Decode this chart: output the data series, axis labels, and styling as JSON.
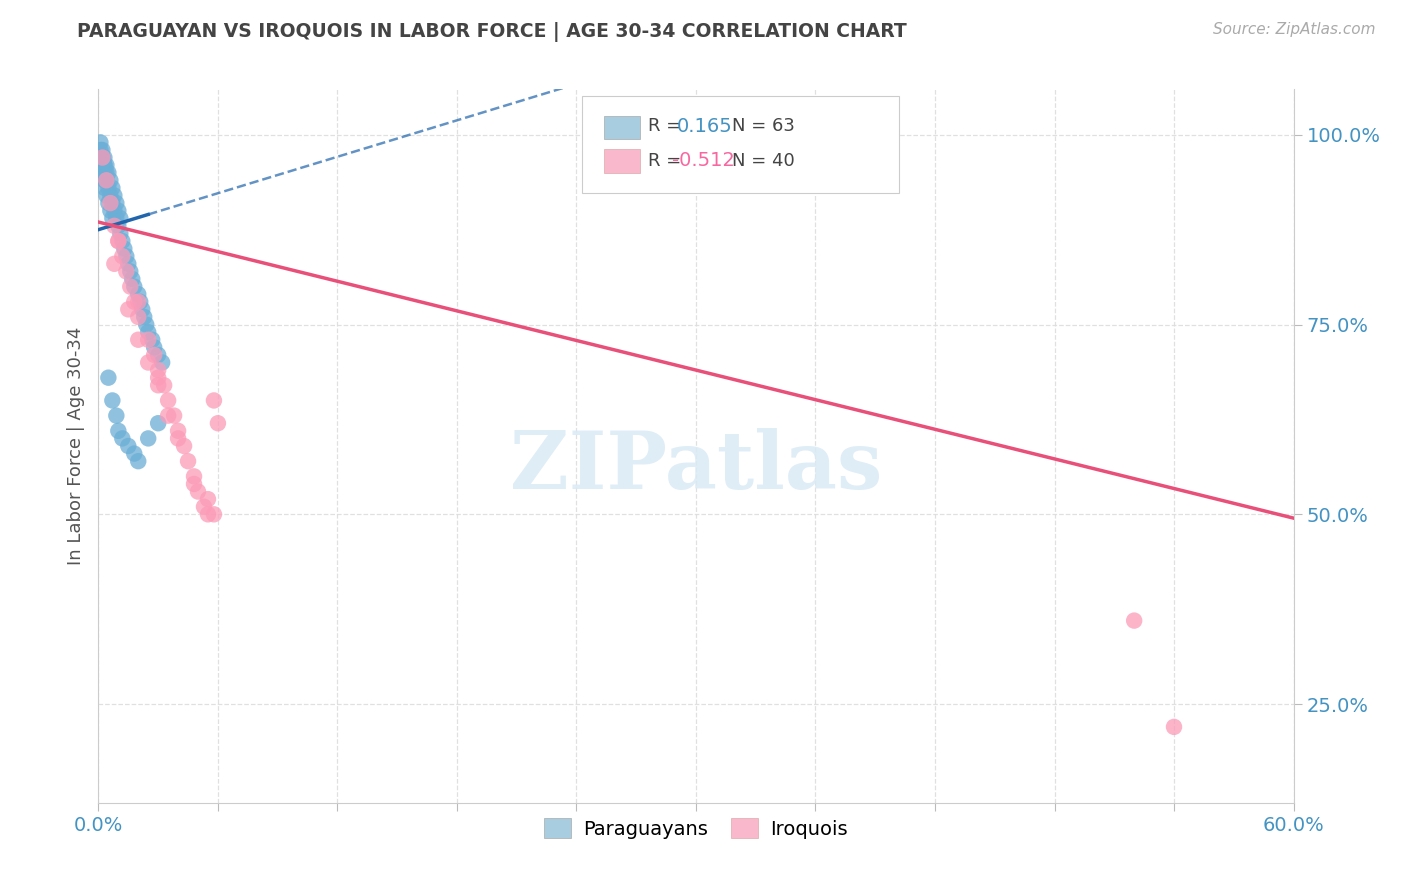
{
  "title": "PARAGUAYAN VS IROQUOIS IN LABOR FORCE | AGE 30-34 CORRELATION CHART",
  "source_text": "Source: ZipAtlas.com",
  "ylabel": "In Labor Force | Age 30-34",
  "xlim": [
    0.0,
    0.6
  ],
  "ylim": [
    0.12,
    1.06
  ],
  "r_paraguayan": 0.165,
  "n_paraguayan": 63,
  "r_iroquois": -0.512,
  "n_iroquois": 40,
  "blue_color": "#6baed6",
  "pink_color": "#fc9bb8",
  "blue_line_color": "#2166ac",
  "pink_line_color": "#e8507a",
  "axis_tick_color": "#4393c3",
  "grid_color": "#dddddd",
  "title_color": "#444444",
  "source_color": "#aaaaaa",
  "watermark_color": "#daeaf5",
  "paraguayan_x": [
    0.001,
    0.001,
    0.001,
    0.001,
    0.002,
    0.002,
    0.002,
    0.002,
    0.002,
    0.003,
    0.003,
    0.003,
    0.003,
    0.003,
    0.003,
    0.004,
    0.004,
    0.004,
    0.004,
    0.005,
    0.005,
    0.005,
    0.006,
    0.006,
    0.006,
    0.007,
    0.007,
    0.007,
    0.008,
    0.008,
    0.009,
    0.009,
    0.01,
    0.01,
    0.011,
    0.011,
    0.012,
    0.013,
    0.014,
    0.015,
    0.016,
    0.017,
    0.018,
    0.02,
    0.021,
    0.022,
    0.023,
    0.024,
    0.025,
    0.027,
    0.028,
    0.03,
    0.032,
    0.005,
    0.007,
    0.009,
    0.01,
    0.012,
    0.015,
    0.018,
    0.02,
    0.025,
    0.03
  ],
  "paraguayan_y": [
    0.98,
    0.97,
    0.99,
    0.96,
    0.97,
    0.96,
    0.98,
    0.95,
    0.97,
    0.96,
    0.95,
    0.97,
    0.94,
    0.96,
    0.93,
    0.95,
    0.94,
    0.96,
    0.92,
    0.93,
    0.95,
    0.91,
    0.92,
    0.94,
    0.9,
    0.91,
    0.93,
    0.89,
    0.9,
    0.92,
    0.89,
    0.91,
    0.88,
    0.9,
    0.87,
    0.89,
    0.86,
    0.85,
    0.84,
    0.83,
    0.82,
    0.81,
    0.8,
    0.79,
    0.78,
    0.77,
    0.76,
    0.75,
    0.74,
    0.73,
    0.72,
    0.71,
    0.7,
    0.68,
    0.65,
    0.63,
    0.61,
    0.6,
    0.59,
    0.58,
    0.57,
    0.6,
    0.62
  ],
  "iroquois_x": [
    0.002,
    0.004,
    0.006,
    0.008,
    0.01,
    0.012,
    0.014,
    0.016,
    0.018,
    0.02,
    0.025,
    0.028,
    0.03,
    0.033,
    0.035,
    0.038,
    0.04,
    0.043,
    0.045,
    0.048,
    0.05,
    0.053,
    0.055,
    0.058,
    0.06,
    0.008,
    0.015,
    0.02,
    0.025,
    0.03,
    0.035,
    0.04,
    0.048,
    0.055,
    0.058,
    0.01,
    0.02,
    0.03,
    0.52,
    0.54
  ],
  "iroquois_y": [
    0.97,
    0.94,
    0.91,
    0.88,
    0.86,
    0.84,
    0.82,
    0.8,
    0.78,
    0.76,
    0.73,
    0.71,
    0.69,
    0.67,
    0.65,
    0.63,
    0.61,
    0.59,
    0.57,
    0.55,
    0.53,
    0.51,
    0.52,
    0.65,
    0.62,
    0.83,
    0.77,
    0.73,
    0.7,
    0.67,
    0.63,
    0.6,
    0.54,
    0.5,
    0.5,
    0.86,
    0.78,
    0.68,
    0.36,
    0.22
  ]
}
